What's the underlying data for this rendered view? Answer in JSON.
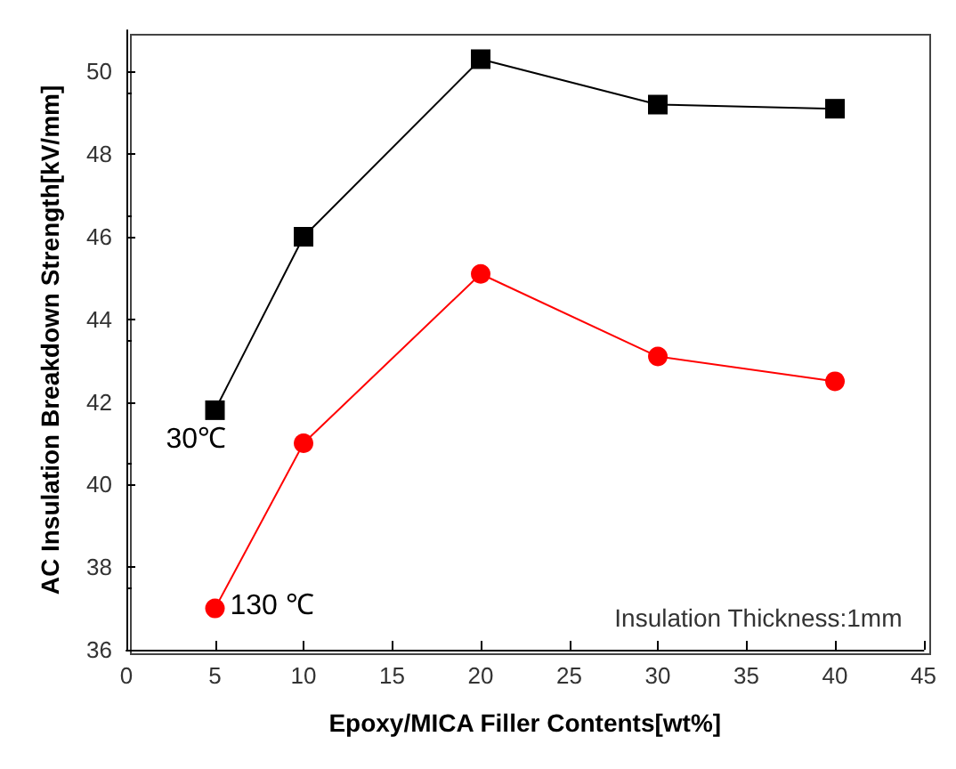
{
  "chart_data": {
    "type": "line",
    "xlabel": "Epoxy/MICA Filler Contents[wt%]",
    "ylabel": "AC Insulation Breakdown Strength[kV/mm]",
    "x": [
      5,
      10,
      20,
      30,
      40
    ],
    "series": [
      {
        "name": "30℃",
        "color": "#000000",
        "marker": "square",
        "values": [
          41.8,
          46.0,
          50.3,
          49.2,
          49.1
        ]
      },
      {
        "name": "130 ℃",
        "color": "#ff0000",
        "marker": "circle",
        "values": [
          37.0,
          41.0,
          45.1,
          43.1,
          42.5
        ]
      }
    ],
    "xlim": [
      0,
      45
    ],
    "xticks": [
      0,
      5,
      10,
      15,
      20,
      25,
      30,
      35,
      40,
      45
    ],
    "ylim": [
      36,
      51
    ],
    "yticks": [
      36,
      38,
      40,
      42,
      44,
      46,
      48,
      50
    ],
    "annotations": [
      "Insulation Thickness:1mm"
    ],
    "grid": false,
    "legend": false
  }
}
